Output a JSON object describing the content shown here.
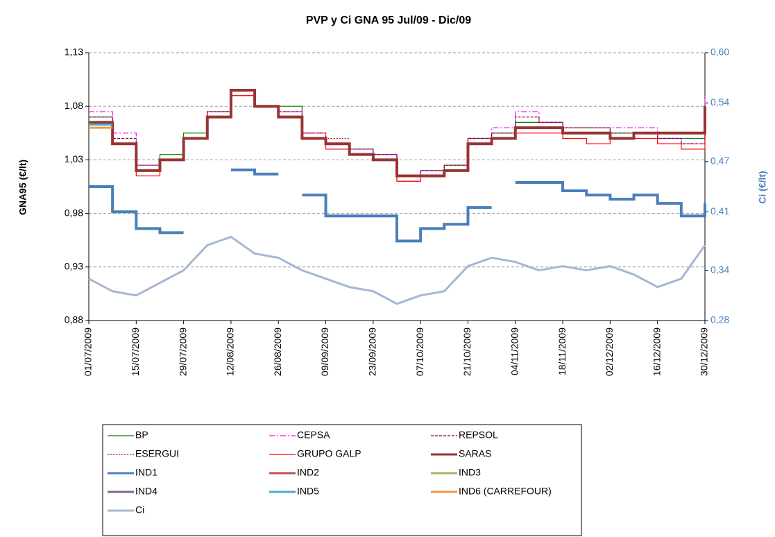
{
  "chart_data": {
    "type": "line",
    "title": "PVP y Ci GNA 95 Jul/09 -  Dic/09",
    "y_label": "GNA95 (€/lt)",
    "y2_label": "Ci (€/lt)",
    "x": [
      "01/07/2009",
      "08/07/2009",
      "15/07/2009",
      "22/07/2009",
      "29/07/2009",
      "05/08/2009",
      "12/08/2009",
      "19/08/2009",
      "26/08/2009",
      "02/09/2009",
      "09/09/2009",
      "16/09/2009",
      "23/09/2009",
      "30/09/2009",
      "07/10/2009",
      "14/10/2009",
      "21/10/2009",
      "28/10/2009",
      "04/11/2009",
      "11/11/2009",
      "18/11/2009",
      "25/11/2009",
      "02/12/2009",
      "09/12/2009",
      "16/12/2009",
      "23/12/2009",
      "30/12/2009"
    ],
    "xlim": [
      "01/07/2009",
      "30/12/2009"
    ],
    "xticks": [
      "01/07/2009",
      "15/07/2009",
      "29/07/2009",
      "12/08/2009",
      "26/08/2009",
      "09/09/2009",
      "23/09/2009",
      "07/10/2009",
      "21/10/2009",
      "04/11/2009",
      "18/11/2009",
      "02/12/2009",
      "16/12/2009",
      "30/12/2009"
    ],
    "ylim": [
      0.88,
      1.13
    ],
    "yticks": [
      {
        "value": 0.88,
        "label": "0,88"
      },
      {
        "value": 0.93,
        "label": "0,93"
      },
      {
        "value": 0.98,
        "label": "0,98"
      },
      {
        "value": 1.03,
        "label": "1,03"
      },
      {
        "value": 1.08,
        "label": "1,08"
      },
      {
        "value": 1.13,
        "label": "1,13"
      }
    ],
    "y2lim": [
      0.28,
      0.6
    ],
    "y2ticks": [
      {
        "value": 0.28,
        "label": "0,28"
      },
      {
        "value": 0.34,
        "label": "0,34"
      },
      {
        "value": 0.41,
        "label": "0,41"
      },
      {
        "value": 0.47,
        "label": "0,47"
      },
      {
        "value": 0.54,
        "label": "0,54"
      },
      {
        "value": 0.6,
        "label": "0,60"
      }
    ],
    "grid": true,
    "series": [
      {
        "name": "BP",
        "color": "#008000",
        "width": 1.2,
        "dash": "",
        "step": true,
        "values": [
          1.07,
          1.045,
          1.025,
          1.035,
          1.055,
          1.075,
          1.095,
          1.08,
          1.08,
          1.05,
          1.045,
          1.04,
          1.035,
          1.015,
          1.02,
          1.025,
          1.05,
          1.055,
          1.065,
          1.065,
          1.06,
          1.06,
          1.055,
          1.055,
          1.05,
          1.05,
          1.065
        ]
      },
      {
        "name": "CEPSA",
        "color": "#ff00ff",
        "width": 1.2,
        "dash": "8,3,2,3",
        "step": true,
        "values": [
          1.075,
          1.055,
          1.025,
          1.03,
          1.05,
          1.075,
          1.095,
          1.08,
          1.075,
          1.055,
          1.045,
          1.04,
          1.035,
          1.01,
          1.02,
          1.02,
          1.05,
          1.06,
          1.075,
          1.065,
          1.06,
          1.06,
          1.06,
          1.06,
          1.05,
          1.045,
          1.09
        ]
      },
      {
        "name": "REPSOL",
        "color": "#800040",
        "width": 1.2,
        "dash": "4,2",
        "step": true,
        "values": [
          1.07,
          1.05,
          1.02,
          1.03,
          1.05,
          1.075,
          1.095,
          1.08,
          1.075,
          1.055,
          1.045,
          1.04,
          1.035,
          1.015,
          1.02,
          1.025,
          1.05,
          1.055,
          1.07,
          1.065,
          1.06,
          1.06,
          1.055,
          1.055,
          1.05,
          1.045,
          1.08
        ]
      },
      {
        "name": "ESERGUI",
        "color": "#c00000",
        "width": 1.2,
        "dash": "2,2",
        "step": true,
        "values": [
          1.065,
          1.045,
          1.02,
          1.03,
          1.05,
          1.07,
          1.09,
          1.08,
          1.07,
          1.055,
          1.05,
          null,
          null,
          null,
          null,
          null,
          null,
          null,
          null,
          null,
          null,
          null,
          null,
          null,
          null,
          null,
          null
        ]
      },
      {
        "name": "GRUPO GALP",
        "color": "#ff0000",
        "width": 1.2,
        "dash": "",
        "step": true,
        "values": [
          1.065,
          1.045,
          1.015,
          1.03,
          1.05,
          1.07,
          1.09,
          1.08,
          1.07,
          1.05,
          1.04,
          1.035,
          1.03,
          1.01,
          1.015,
          1.02,
          1.045,
          1.05,
          1.055,
          1.055,
          1.05,
          1.045,
          1.05,
          1.05,
          1.045,
          1.04,
          1.075
        ]
      },
      {
        "name": "SARAS",
        "color": "#993333",
        "width": 4,
        "dash": "",
        "step": true,
        "values": [
          1.065,
          1.045,
          1.02,
          1.03,
          1.05,
          1.07,
          1.095,
          1.08,
          1.07,
          1.05,
          1.045,
          1.035,
          1.03,
          1.015,
          1.015,
          1.02,
          1.045,
          1.05,
          1.06,
          1.06,
          1.055,
          1.055,
          1.05,
          1.055,
          1.055,
          1.055,
          1.08
        ]
      },
      {
        "name": "IND1",
        "color": "#4a7ebb",
        "width": 4,
        "dash": "",
        "step": true,
        "axis": "y2",
        "values": [
          0.44,
          0.41,
          0.39,
          0.385,
          null,
          null,
          0.46,
          0.455,
          null,
          0.43,
          0.405,
          0.405,
          0.405,
          0.375,
          0.39,
          0.395,
          0.415,
          null,
          0.445,
          0.445,
          0.435,
          0.43,
          0.425,
          0.43,
          0.42,
          0.405,
          0.42
        ]
      },
      {
        "name": "IND2",
        "color": "#c0504d",
        "width": 3,
        "dash": "",
        "step": true,
        "values": [
          null,
          null,
          null,
          null,
          null,
          null,
          null,
          null,
          null,
          null,
          null,
          null,
          null,
          null,
          null,
          null,
          null,
          null,
          null,
          null,
          null,
          null,
          null,
          null,
          null,
          null,
          null
        ]
      },
      {
        "name": "IND3",
        "color": "#9bbb59",
        "width": 3,
        "dash": "",
        "step": true,
        "values": [
          null,
          null,
          null,
          null,
          null,
          null,
          null,
          null,
          null,
          null,
          null,
          null,
          null,
          null,
          null,
          null,
          null,
          null,
          null,
          null,
          null,
          null,
          null,
          null,
          null,
          null,
          null
        ]
      },
      {
        "name": "IND4",
        "color": "#8064a2",
        "width": 3,
        "dash": "",
        "step": true,
        "values": [
          null,
          null,
          null,
          null,
          null,
          null,
          null,
          null,
          null,
          null,
          null,
          null,
          null,
          null,
          null,
          null,
          null,
          null,
          null,
          null,
          null,
          null,
          null,
          null,
          null,
          null,
          null
        ]
      },
      {
        "name": "IND5",
        "color": "#4bacc6",
        "width": 3,
        "dash": "",
        "step": true,
        "values": [
          1.063,
          null,
          null,
          null,
          null,
          null,
          null,
          null,
          null,
          null,
          null,
          null,
          null,
          null,
          null,
          null,
          null,
          null,
          null,
          null,
          null,
          null,
          null,
          null,
          null,
          null,
          null
        ]
      },
      {
        "name": "IND6 (CARREFOUR)",
        "color": "#f79646",
        "width": 3,
        "dash": "",
        "step": true,
        "values": [
          1.06,
          null,
          null,
          null,
          null,
          null,
          null,
          null,
          null,
          null,
          null,
          null,
          null,
          null,
          null,
          null,
          null,
          null,
          null,
          null,
          null,
          null,
          null,
          null,
          null,
          null,
          null
        ]
      },
      {
        "name": "Ci",
        "color": "#a6b6d4",
        "width": 3,
        "dash": "",
        "step": false,
        "axis": "y2",
        "values": [
          0.33,
          0.315,
          0.31,
          0.325,
          0.34,
          0.37,
          0.38,
          0.36,
          0.355,
          0.34,
          0.33,
          0.32,
          0.315,
          0.3,
          0.31,
          0.315,
          0.345,
          0.355,
          0.35,
          0.34,
          0.345,
          0.34,
          0.345,
          0.335,
          0.32,
          0.33,
          0.37
        ]
      }
    ]
  }
}
